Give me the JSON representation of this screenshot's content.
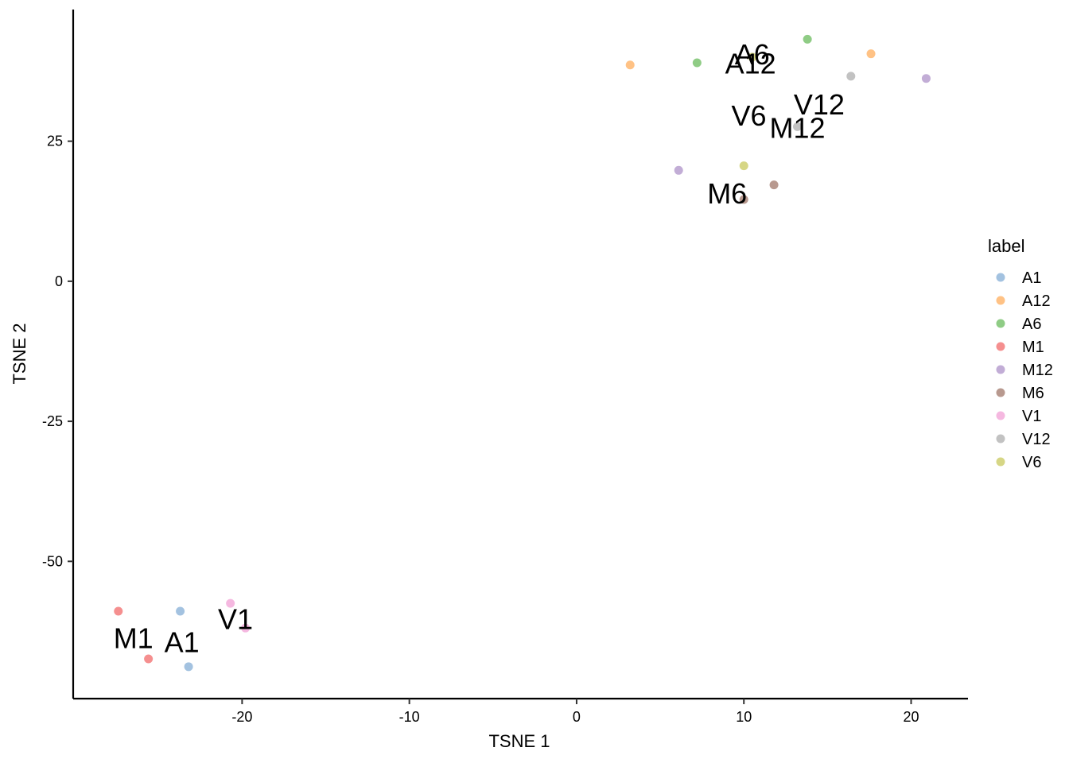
{
  "chart_data": {
    "type": "scatter",
    "xlabel": "TSNE 1",
    "ylabel": "TSNE 2",
    "xlim": [
      -30.1,
      23.4
    ],
    "ylim": [
      -74.5,
      48.5
    ],
    "x_ticks": [
      -20,
      -10,
      0,
      10,
      20
    ],
    "y_ticks": [
      -50,
      -25,
      0,
      25
    ],
    "grid": false,
    "legend": {
      "title": "label",
      "position": "right"
    },
    "series": [
      {
        "name": "A1",
        "color": "#6699CC",
        "points": [
          [
            -23.7,
            -58.9
          ],
          [
            -23.2,
            -68.8
          ]
        ]
      },
      {
        "name": "A12",
        "color": "#FF9933",
        "points": [
          [
            3.2,
            38.6
          ],
          [
            17.6,
            40.6
          ]
        ]
      },
      {
        "name": "A6",
        "color": "#44AA33",
        "points": [
          [
            7.2,
            39.0
          ],
          [
            13.8,
            43.2
          ]
        ]
      },
      {
        "name": "M1",
        "color": "#EE4444",
        "points": [
          [
            -27.4,
            -58.9
          ],
          [
            -25.6,
            -67.4
          ]
        ]
      },
      {
        "name": "M12",
        "color": "#9977BB",
        "points": [
          [
            6.1,
            19.8
          ],
          [
            20.9,
            36.2
          ]
        ]
      },
      {
        "name": "M6",
        "color": "#885544",
        "points": [
          [
            11.8,
            17.2
          ],
          [
            10.0,
            14.6
          ]
        ]
      },
      {
        "name": "V1",
        "color": "#EE88CC",
        "points": [
          [
            -20.7,
            -57.5
          ],
          [
            -19.8,
            -61.9
          ]
        ]
      },
      {
        "name": "V12",
        "color": "#999999",
        "points": [
          [
            16.4,
            36.6
          ],
          [
            13.2,
            27.6
          ]
        ]
      },
      {
        "name": "V6",
        "color": "#BBBB33",
        "points": [
          [
            10.0,
            20.6
          ],
          [
            10.5,
            40.0
          ]
        ]
      }
    ],
    "annotations": [
      {
        "text": "A6",
        "x": 10.5,
        "y": 40.4
      },
      {
        "text": "A12",
        "x": 10.4,
        "y": 38.8
      },
      {
        "text": "V12",
        "x": 14.5,
        "y": 31.5
      },
      {
        "text": "V6",
        "x": 10.3,
        "y": 29.5
      },
      {
        "text": "M12",
        "x": 13.2,
        "y": 27.3
      },
      {
        "text": "M6",
        "x": 9.0,
        "y": 15.6
      },
      {
        "text": "V1",
        "x": -20.4,
        "y": -60.4
      },
      {
        "text": "M1",
        "x": -26.5,
        "y": -63.8
      },
      {
        "text": "A1",
        "x": -23.6,
        "y": -64.5
      }
    ]
  }
}
